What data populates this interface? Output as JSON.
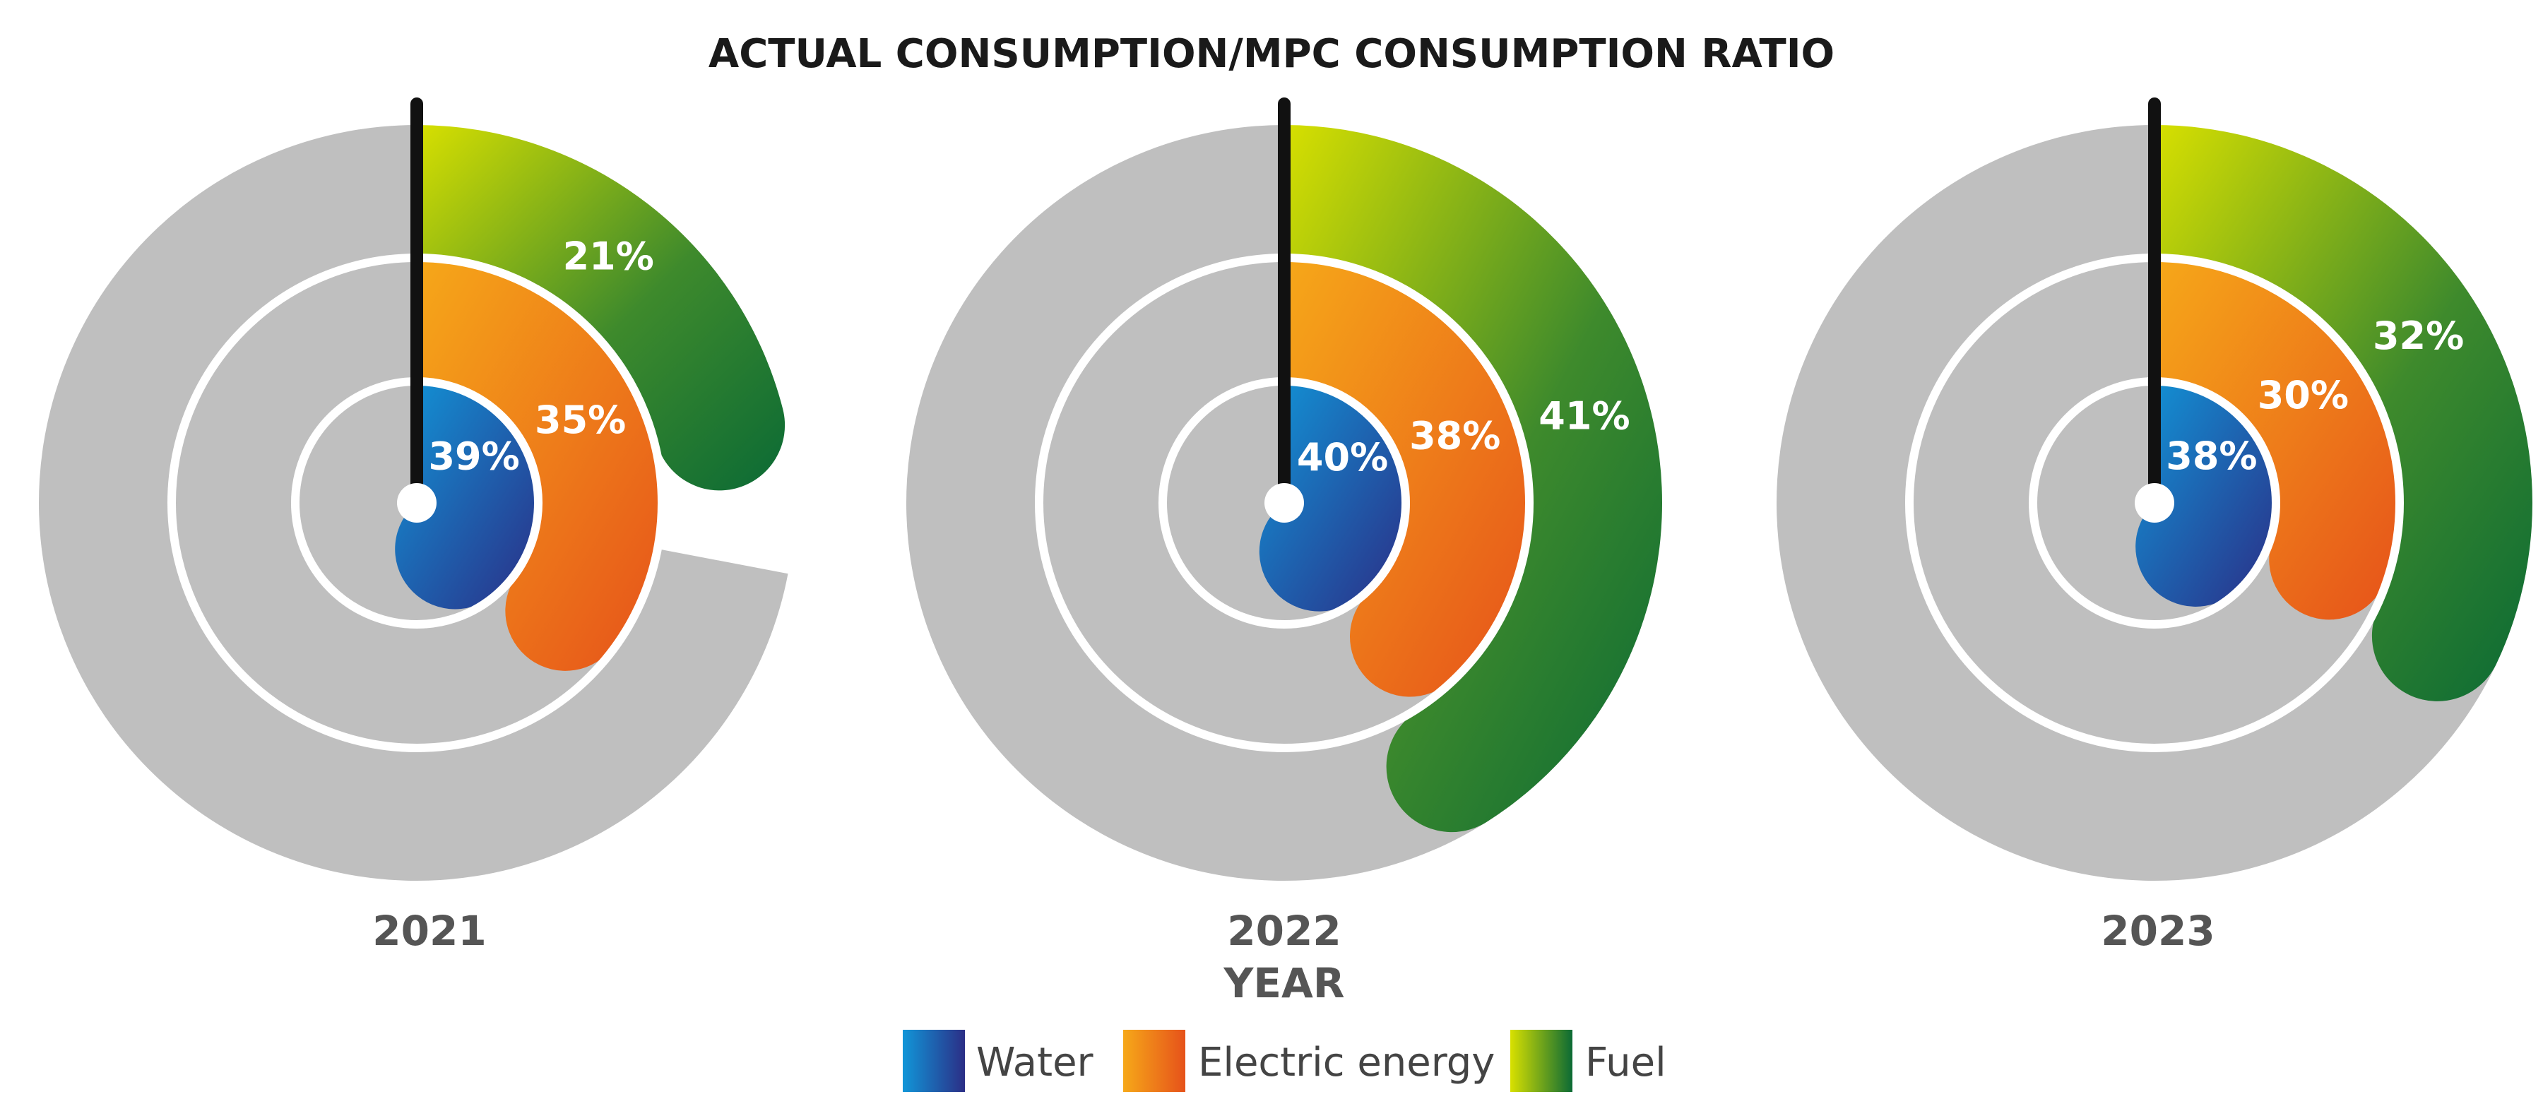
{
  "chart_data": {
    "type": "radial-bar",
    "title": "ACTUAL CONSUMPTION/MPC CONSUMPTION RATIO",
    "xlabel": "YEAR",
    "categories": [
      "2021",
      "2022",
      "2023"
    ],
    "series": [
      {
        "name": "Water",
        "values": [
          39,
          40,
          38
        ],
        "labels": [
          "39%",
          "40%",
          "38%"
        ]
      },
      {
        "name": "Electric energy",
        "values": [
          35,
          38,
          30
        ],
        "labels": [
          "35%",
          "38%",
          "30%"
        ]
      },
      {
        "name": "Fuel",
        "values": [
          21,
          41,
          32
        ],
        "labels": [
          "21%",
          "41%",
          "32%"
        ]
      }
    ],
    "range": [
      0,
      100
    ],
    "legend_position": "bottom-center",
    "colors": {
      "background_ring": "#bfbfbf",
      "water": [
        "#1196d8",
        "#2b2e86"
      ],
      "electric": [
        "#f6a819",
        "#e6521a"
      ],
      "fuel": [
        "#d8e000",
        "#0b6a35"
      ],
      "needle": "#111111"
    }
  }
}
